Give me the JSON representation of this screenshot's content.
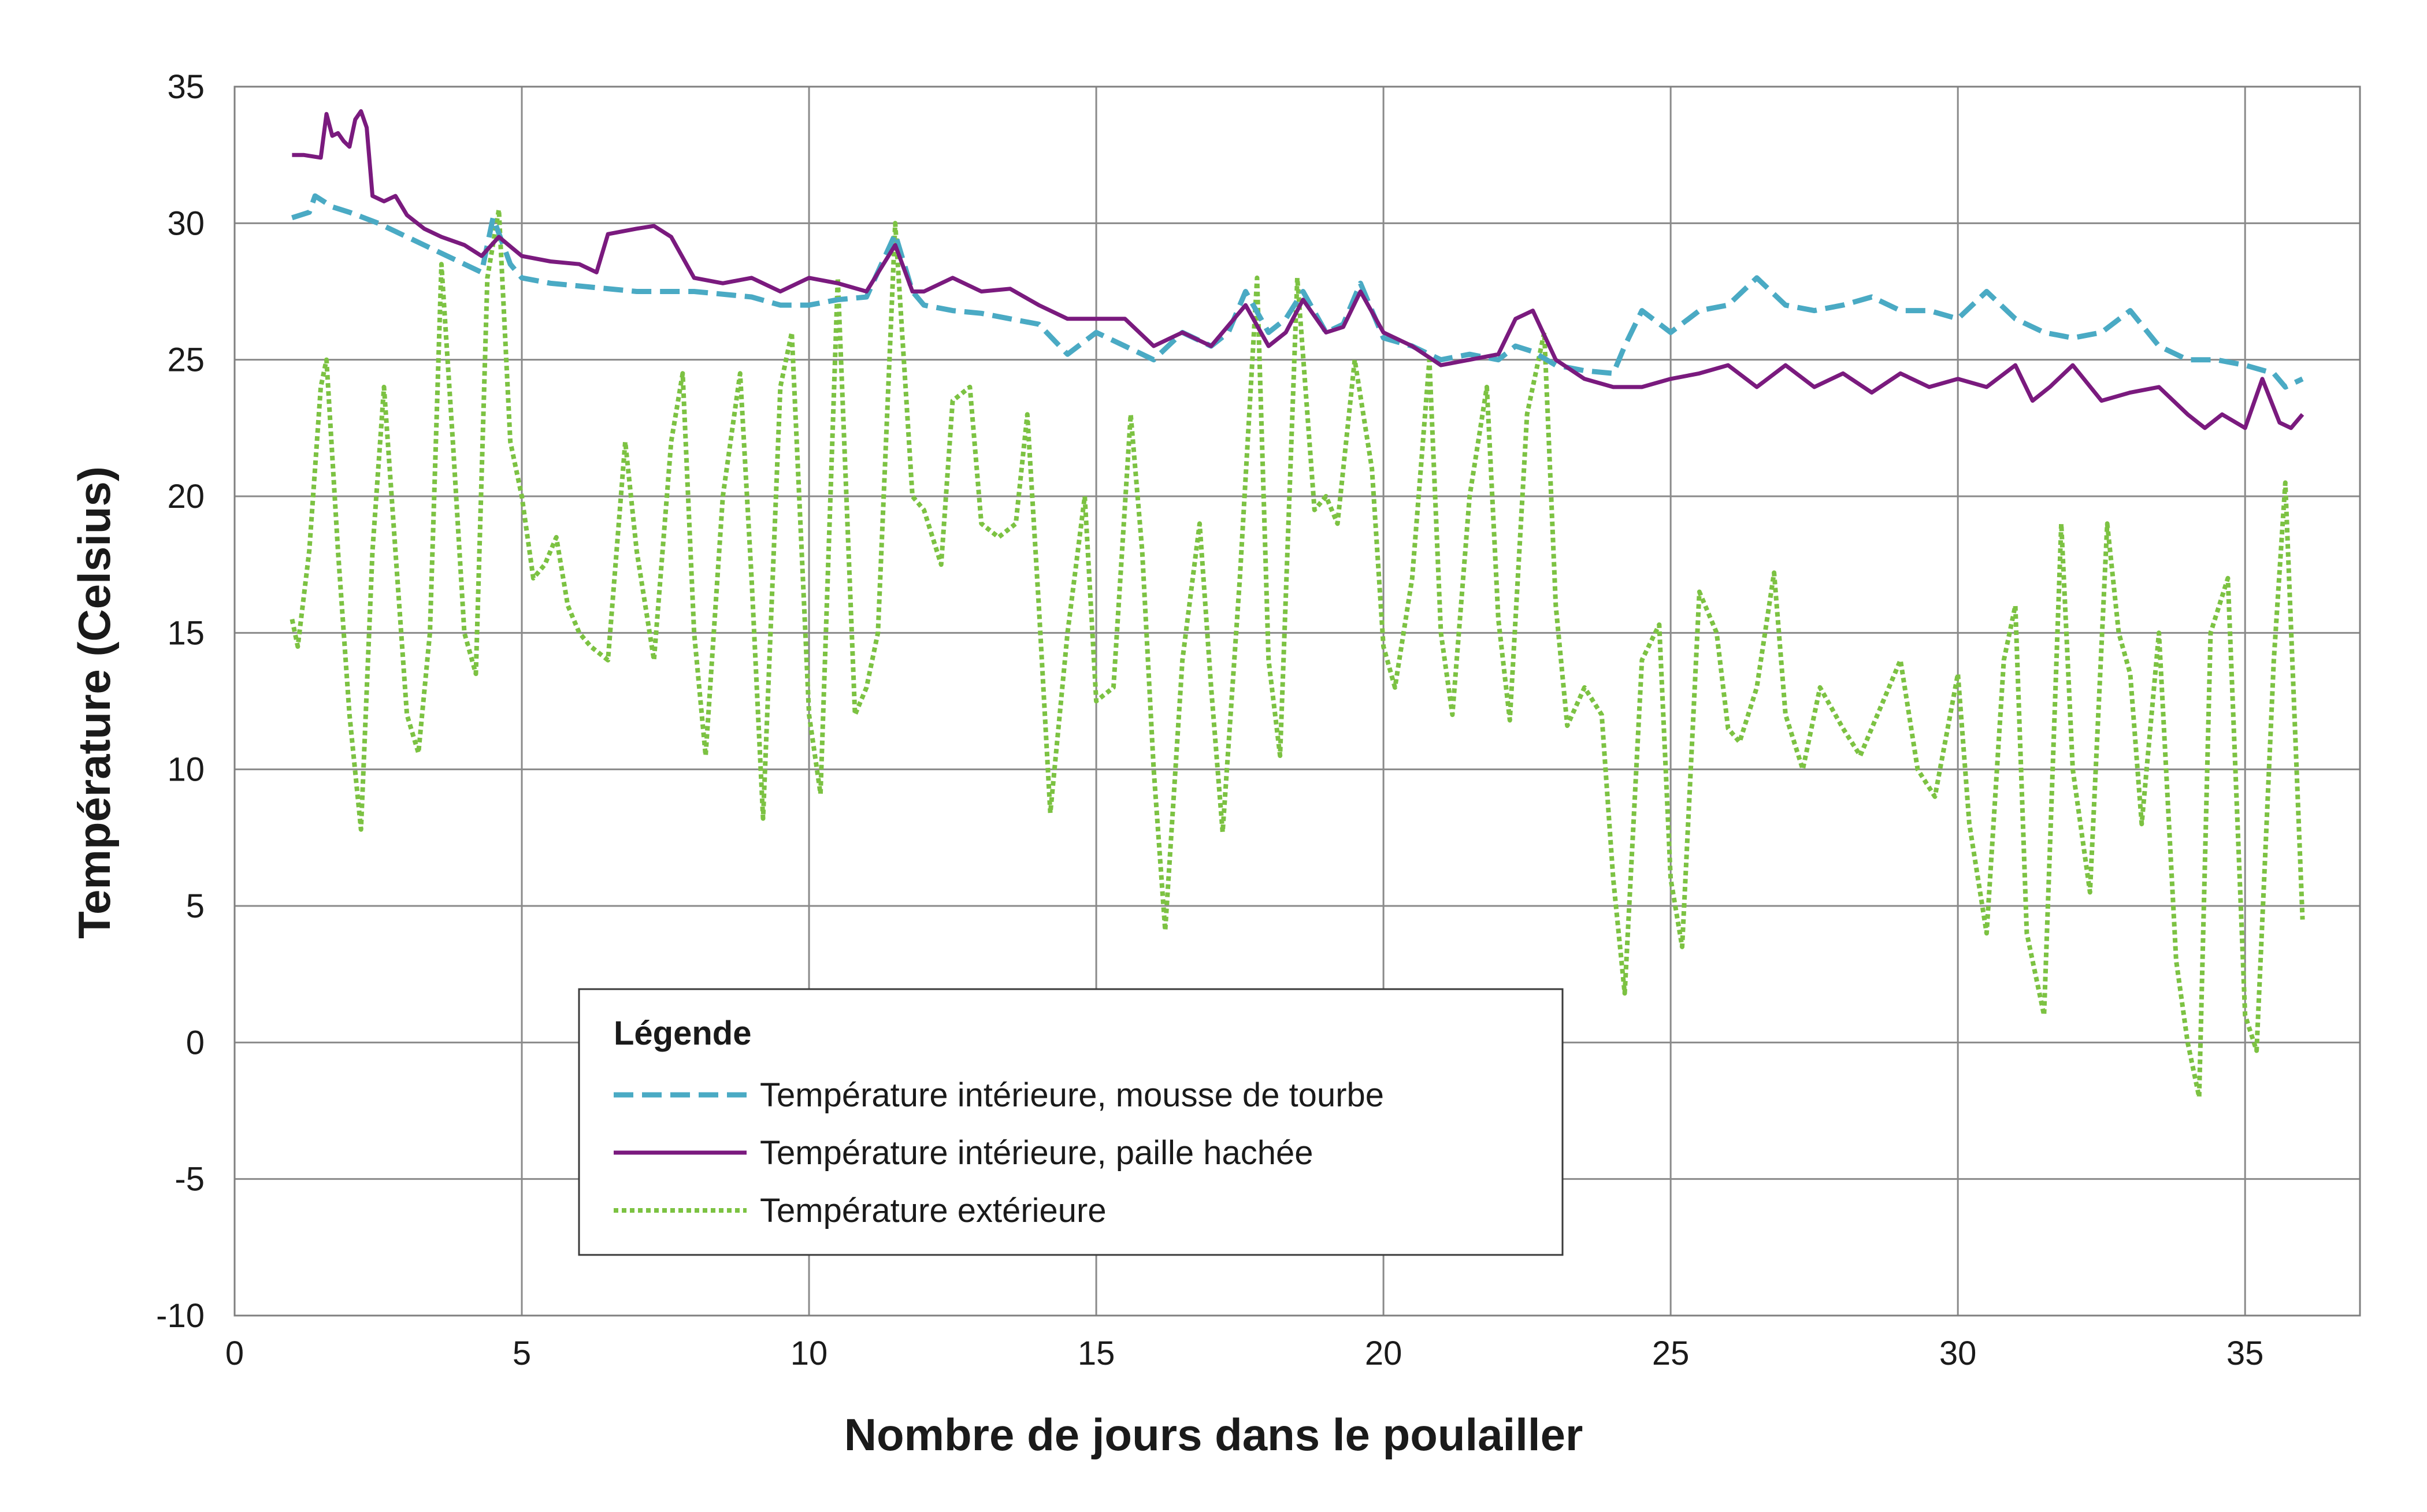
{
  "chart_data": {
    "type": "line",
    "xlabel": "Nombre de jours dans le poulailler",
    "ylabel": "Température (Celsius)",
    "xlim": [
      0,
      37
    ],
    "ylim": [
      -10,
      35
    ],
    "xticks": [
      "0",
      "5",
      "10",
      "15",
      "20",
      "25",
      "30",
      "35"
    ],
    "yticks": [
      "-10",
      "-5",
      "0",
      "5",
      "10",
      "15",
      "20",
      "25",
      "30",
      "35"
    ],
    "grid": true,
    "legend": {
      "title": "Légende",
      "position": "bottom-center"
    },
    "series": [
      {
        "name": "Température intérieure, mousse de tourbe",
        "color": "#4aaac4",
        "style": "dashed",
        "x": [
          1.0,
          1.3,
          1.4,
          1.7,
          2.0,
          2.5,
          3.0,
          3.5,
          4.0,
          4.3,
          4.5,
          4.8,
          5.0,
          5.5,
          6.0,
          7.0,
          8.0,
          9.0,
          9.5,
          10.0,
          10.5,
          11.0,
          11.5,
          11.8,
          12.0,
          12.5,
          13.0,
          13.5,
          14.0,
          14.5,
          15.0,
          15.5,
          16.0,
          16.5,
          17.0,
          17.3,
          17.6,
          18.0,
          18.3,
          18.6,
          19.0,
          19.3,
          19.6,
          20.0,
          20.5,
          21.0,
          21.5,
          22.0,
          22.3,
          22.6,
          23.0,
          23.5,
          24.0,
          24.2,
          24.5,
          25.0,
          25.5,
          26.0,
          26.5,
          27.0,
          27.5,
          28.0,
          28.5,
          29.0,
          29.5,
          30.0,
          30.5,
          31.0,
          31.5,
          32.0,
          32.5,
          33.0,
          33.5,
          34.0,
          34.5,
          35.0,
          35.5,
          35.7,
          36.0
        ],
        "y": [
          30.2,
          30.4,
          31.0,
          30.6,
          30.4,
          30.0,
          29.5,
          29.0,
          28.5,
          28.2,
          30.2,
          28.5,
          28.0,
          27.8,
          27.7,
          27.5,
          27.5,
          27.3,
          27.0,
          27.0,
          27.2,
          27.3,
          29.6,
          27.5,
          27.0,
          26.8,
          26.7,
          26.5,
          26.3,
          25.2,
          26.0,
          25.5,
          25.0,
          26.0,
          25.5,
          26.0,
          27.5,
          26.0,
          26.5,
          27.5,
          26.0,
          26.3,
          27.8,
          25.8,
          25.5,
          25.0,
          25.2,
          25.0,
          25.5,
          25.3,
          24.8,
          24.6,
          24.5,
          25.5,
          26.8,
          26.0,
          26.8,
          27.0,
          28.0,
          27.0,
          26.8,
          27.0,
          27.3,
          26.8,
          26.8,
          26.5,
          27.5,
          26.5,
          26.0,
          25.8,
          26.0,
          26.8,
          25.5,
          25.0,
          25.0,
          24.8,
          24.5,
          24.0,
          24.3
        ]
      },
      {
        "name": "Température intérieure, paille hachée",
        "color": "#7a1a7e",
        "style": "solid",
        "x": [
          1.0,
          1.2,
          1.5,
          1.6,
          1.7,
          1.8,
          1.9,
          2.0,
          2.1,
          2.2,
          2.3,
          2.4,
          2.6,
          2.8,
          3.0,
          3.3,
          3.6,
          4.0,
          4.3,
          4.6,
          5.0,
          5.5,
          6.0,
          6.3,
          6.5,
          7.0,
          7.3,
          7.6,
          8.0,
          8.5,
          9.0,
          9.5,
          10.0,
          10.5,
          11.0,
          11.5,
          11.8,
          12.0,
          12.5,
          13.0,
          13.5,
          14.0,
          14.5,
          15.0,
          15.5,
          16.0,
          16.5,
          17.0,
          17.6,
          18.0,
          18.3,
          18.6,
          19.0,
          19.3,
          19.6,
          20.0,
          20.5,
          21.0,
          21.5,
          22.0,
          22.3,
          22.6,
          23.0,
          23.5,
          24.0,
          24.5,
          25.0,
          25.5,
          26.0,
          26.5,
          27.0,
          27.5,
          28.0,
          28.5,
          29.0,
          29.5,
          30.0,
          30.5,
          31.0,
          31.3,
          31.6,
          32.0,
          32.5,
          33.0,
          33.5,
          34.0,
          34.3,
          34.6,
          35.0,
          35.3,
          35.6,
          35.8,
          36.0
        ],
        "y": [
          32.5,
          32.5,
          32.4,
          34.0,
          33.2,
          33.3,
          33.0,
          32.8,
          33.8,
          34.1,
          33.5,
          31.0,
          30.8,
          31.0,
          30.3,
          29.8,
          29.5,
          29.2,
          28.8,
          29.5,
          28.8,
          28.6,
          28.5,
          28.2,
          29.6,
          29.8,
          29.9,
          29.5,
          28.0,
          27.8,
          28.0,
          27.5,
          28.0,
          27.8,
          27.5,
          29.2,
          27.5,
          27.5,
          28.0,
          27.5,
          27.6,
          27.0,
          26.5,
          26.5,
          26.5,
          25.5,
          26.0,
          25.5,
          27.0,
          25.5,
          26.0,
          27.2,
          26.0,
          26.2,
          27.5,
          26.0,
          25.5,
          24.8,
          25.0,
          25.2,
          26.5,
          26.8,
          25.0,
          24.3,
          24.0,
          24.0,
          24.3,
          24.5,
          24.8,
          24.0,
          24.8,
          24.0,
          24.5,
          23.8,
          24.5,
          24.0,
          24.3,
          24.0,
          24.8,
          23.5,
          24.0,
          24.8,
          23.5,
          23.8,
          24.0,
          23.0,
          22.5,
          23.0,
          22.5,
          24.3,
          22.7,
          22.5,
          23.0
        ]
      },
      {
        "name": "Température extérieure",
        "color": "#7cc242",
        "style": "dotted",
        "x": [
          1.0,
          1.1,
          1.3,
          1.5,
          1.6,
          1.8,
          2.0,
          2.2,
          2.4,
          2.6,
          2.8,
          3.0,
          3.2,
          3.4,
          3.6,
          3.8,
          4.0,
          4.2,
          4.4,
          4.6,
          4.8,
          5.0,
          5.2,
          5.4,
          5.6,
          5.8,
          6.0,
          6.2,
          6.5,
          6.8,
          7.0,
          7.3,
          7.6,
          7.8,
          8.0,
          8.2,
          8.5,
          8.8,
          9.0,
          9.2,
          9.5,
          9.7,
          10.0,
          10.2,
          10.5,
          10.8,
          11.0,
          11.2,
          11.5,
          11.8,
          12.0,
          12.3,
          12.5,
          12.8,
          13.0,
          13.3,
          13.6,
          13.8,
          14.0,
          14.2,
          14.5,
          14.8,
          15.0,
          15.3,
          15.6,
          15.8,
          16.0,
          16.2,
          16.5,
          16.8,
          17.0,
          17.2,
          17.5,
          17.8,
          18.0,
          18.2,
          18.5,
          18.8,
          19.0,
          19.2,
          19.5,
          19.8,
          20.0,
          20.2,
          20.5,
          20.8,
          21.0,
          21.2,
          21.5,
          21.8,
          22.0,
          22.2,
          22.5,
          22.8,
          23.0,
          23.2,
          23.5,
          23.8,
          24.0,
          24.2,
          24.5,
          24.8,
          25.0,
          25.2,
          25.5,
          25.8,
          26.0,
          26.2,
          26.5,
          26.8,
          27.0,
          27.3,
          27.6,
          28.0,
          28.3,
          28.6,
          29.0,
          29.3,
          29.6,
          30.0,
          30.2,
          30.5,
          30.8,
          31.0,
          31.2,
          31.5,
          31.8,
          32.0,
          32.3,
          32.6,
          32.8,
          33.0,
          33.2,
          33.5,
          33.8,
          34.0,
          34.2,
          34.4,
          34.7,
          35.0,
          35.2,
          35.5,
          35.7,
          36.0
        ],
        "y": [
          15.5,
          14.5,
          18.0,
          24.0,
          25.0,
          18.0,
          12.0,
          7.8,
          18.0,
          24.0,
          18.0,
          12.0,
          10.6,
          15.0,
          28.5,
          22.0,
          15.0,
          13.5,
          28.0,
          30.5,
          22.0,
          20.0,
          17.0,
          17.5,
          18.5,
          16.0,
          15.0,
          14.5,
          14.0,
          22.0,
          18.0,
          14.0,
          22.0,
          24.5,
          15.0,
          10.5,
          20.0,
          24.5,
          17.0,
          8.2,
          24.0,
          26.0,
          12.0,
          9.1,
          28.0,
          12.0,
          13.0,
          15.0,
          30.0,
          20.0,
          19.5,
          17.5,
          23.5,
          24.0,
          19.0,
          18.5,
          19.0,
          23.0,
          16.0,
          8.4,
          15.0,
          20.0,
          12.5,
          13.0,
          23.0,
          18.0,
          10.0,
          4.1,
          14.0,
          19.0,
          13.0,
          7.7,
          17.0,
          28.0,
          14.0,
          10.5,
          28.0,
          19.5,
          20.0,
          19.0,
          25.0,
          21.0,
          14.5,
          13.0,
          17.0,
          25.0,
          15.0,
          12.0,
          20.0,
          24.0,
          15.5,
          11.8,
          23.0,
          26.0,
          16.0,
          11.6,
          13.0,
          12.0,
          6.0,
          1.8,
          14.0,
          15.3,
          6.0,
          3.5,
          16.5,
          15.0,
          11.5,
          11.0,
          13.0,
          17.2,
          12.0,
          10.0,
          13.0,
          11.5,
          10.5,
          12.0,
          14.0,
          10.0,
          9.0,
          13.5,
          8.0,
          4.0,
          14.0,
          16.0,
          4.0,
          1.0,
          19.0,
          10.0,
          5.5,
          19.0,
          15.0,
          13.5,
          8.0,
          15.0,
          3.0,
          0.0,
          -2.0,
          15.0,
          17.0,
          1.0,
          -0.3,
          14.0,
          20.5,
          4.5
        ]
      }
    ]
  }
}
